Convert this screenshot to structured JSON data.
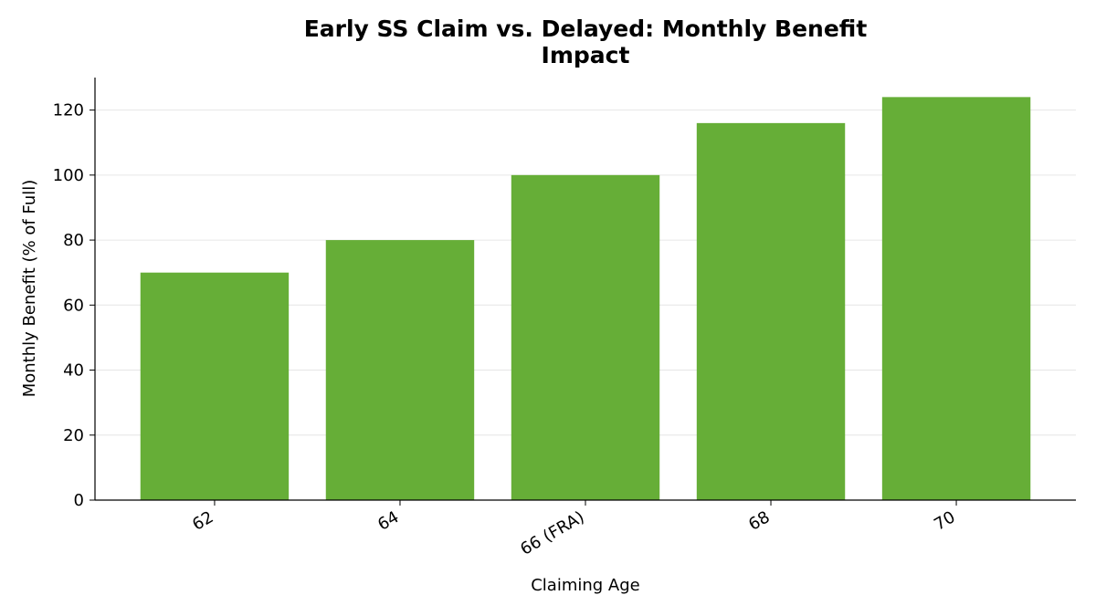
{
  "chart_data": {
    "type": "bar",
    "title": "Early SS Claim vs. Delayed: Monthly Benefit Impact",
    "x_label": "Claiming Age",
    "y_label": "Monthly Benefit (% of Full)",
    "categories": [
      "62",
      "64",
      "66 (FRA)",
      "68",
      "70"
    ],
    "values": [
      70,
      80,
      100,
      116,
      124
    ],
    "color": "#66ae37",
    "ylim": [
      0,
      130
    ],
    "yticks": [
      0,
      20,
      40,
      60,
      80,
      100,
      120
    ],
    "grid": true
  }
}
